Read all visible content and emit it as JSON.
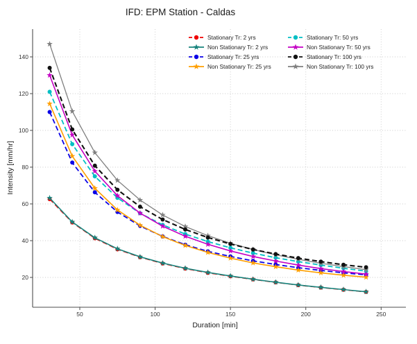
{
  "window": {
    "title": "IFD: EPM Station - Caldas"
  },
  "colors": {
    "background": "#ffffff",
    "grid": "#c9c9c9",
    "axis": "#4d4d4d",
    "tick_text": "#333333",
    "title_text": "#1a1a1a"
  },
  "chart_data": {
    "type": "line",
    "title": "IFD: EPM Station - Caldas",
    "xlabel": "Duration [min]",
    "ylabel": "Intensity [mm/hr]",
    "grid": true,
    "legend_position": "upper right inside plot, 2 columns, no frame",
    "x_ticks": [
      50,
      100,
      150,
      200,
      250
    ],
    "y_ticks": [
      20,
      40,
      60,
      80,
      100,
      120,
      140
    ],
    "xlim": [
      18,
      267
    ],
    "ylim": [
      4,
      153
    ],
    "x": [
      30,
      45,
      60,
      75,
      90,
      105,
      120,
      135,
      150,
      165,
      180,
      195,
      210,
      225,
      240
    ],
    "series": [
      {
        "name": "Stationary Tr: 2 yrs",
        "color": "#ef0000",
        "line_style": "dashed",
        "marker": "circle",
        "values": [
          62.6,
          49.9,
          41.3,
          35.3,
          31.0,
          27.6,
          24.8,
          22.5,
          20.6,
          18.9,
          17.3,
          15.8,
          14.5,
          13.3,
          12.1
        ]
      },
      {
        "name": "Non Stationary Tr: 2 yrs",
        "color": "#17837c",
        "line_style": "solid",
        "marker": "star",
        "values": [
          63.2,
          50.2,
          41.6,
          35.6,
          31.2,
          27.8,
          25.0,
          22.7,
          20.8,
          19.0,
          17.4,
          15.9,
          14.6,
          13.4,
          12.2
        ]
      },
      {
        "name": "Stationary Tr: 25 yrs",
        "color": "#0a00e6",
        "line_style": "dashed",
        "marker": "circle",
        "values": [
          110.0,
          82.5,
          66.3,
          55.6,
          48.0,
          42.3,
          37.8,
          34.2,
          31.4,
          29.0,
          27.0,
          25.3,
          23.8,
          22.5,
          21.4
        ]
      },
      {
        "name": "Non Stationary Tr: 25 yrs",
        "color": "#ff9f00",
        "line_style": "solid",
        "marker": "star",
        "values": [
          114.5,
          86.0,
          68.5,
          56.7,
          48.4,
          42.2,
          37.4,
          33.6,
          30.5,
          27.9,
          25.8,
          24.0,
          22.5,
          21.2,
          20.1
        ]
      },
      {
        "name": "Stationary Tr: 50 yrs",
        "color": "#00bfc4",
        "line_style": "dashed",
        "marker": "circle",
        "values": [
          121.0,
          92.5,
          75.0,
          63.3,
          54.9,
          48.6,
          43.6,
          39.5,
          36.1,
          33.2,
          30.7,
          28.6,
          26.7,
          25.0,
          23.4
        ]
      },
      {
        "name": "Non Stationary Tr: 50 yrs",
        "color": "#c400c4",
        "line_style": "solid",
        "marker": "star",
        "values": [
          130.0,
          97.5,
          77.8,
          64.5,
          55.0,
          47.9,
          42.4,
          38.0,
          34.4,
          31.4,
          28.9,
          26.7,
          24.8,
          23.2,
          21.8
        ]
      },
      {
        "name": "Stationary Tr: 100 yrs",
        "color": "#111111",
        "line_style": "dashed",
        "marker": "circle",
        "values": [
          134.0,
          100.5,
          80.8,
          67.7,
          58.5,
          51.5,
          46.1,
          41.7,
          38.2,
          35.2,
          32.7,
          30.5,
          28.6,
          26.9,
          25.5
        ]
      },
      {
        "name": "Non Stationary Tr: 100 yrs",
        "color": "#7f7f7f",
        "line_style": "solid",
        "marker": "star",
        "values": [
          147.0,
          110.4,
          87.9,
          72.8,
          62.1,
          54.0,
          47.7,
          42.7,
          38.6,
          35.2,
          32.3,
          29.9,
          27.7,
          25.9,
          24.2
        ]
      }
    ],
    "legend_columns": [
      [
        0,
        1,
        2,
        3
      ],
      [
        4,
        5,
        6,
        7
      ]
    ]
  }
}
